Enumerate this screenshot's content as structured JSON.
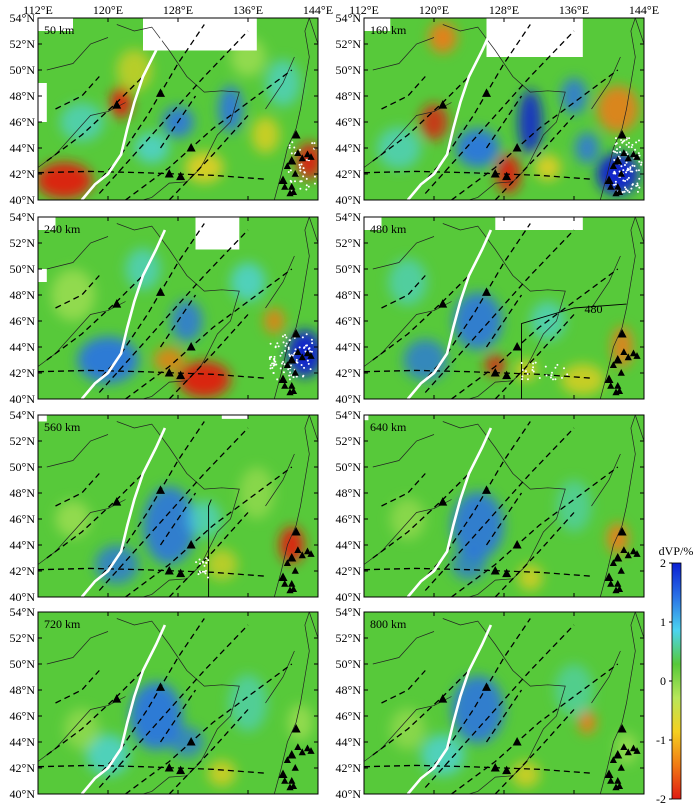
{
  "lon_ticks": [
    "112°E",
    "120°E",
    "128°E",
    "136°E",
    "144°E"
  ],
  "lat_ticks": [
    "40°N",
    "42°N",
    "44°N",
    "46°N",
    "48°N",
    "50°N",
    "52°N",
    "54°N"
  ],
  "panels": [
    {
      "id": "p50",
      "depth_label": "50 km"
    },
    {
      "id": "p160",
      "depth_label": "160 km"
    },
    {
      "id": "p240",
      "depth_label": "240 km"
    },
    {
      "id": "p480",
      "depth_label": "480 km",
      "contour_label": "480"
    },
    {
      "id": "p560",
      "depth_label": "560 km"
    },
    {
      "id": "p640",
      "depth_label": "640 km"
    },
    {
      "id": "p720",
      "depth_label": "720 km"
    },
    {
      "id": "p800",
      "depth_label": "800 km"
    }
  ],
  "colorbar": {
    "title": "dVP/%",
    "tick_labels": [
      "2",
      "1",
      "0",
      "-1",
      "-2"
    ],
    "tick_values": [
      2,
      1,
      0,
      -1,
      -2
    ],
    "colors": [
      "#0a1ed2",
      "#2a72e6",
      "#4cd4f0",
      "#57c93a",
      "#b8e65a",
      "#f5d020",
      "#f07a14",
      "#e01a12"
    ]
  },
  "legend_hidden": true
}
